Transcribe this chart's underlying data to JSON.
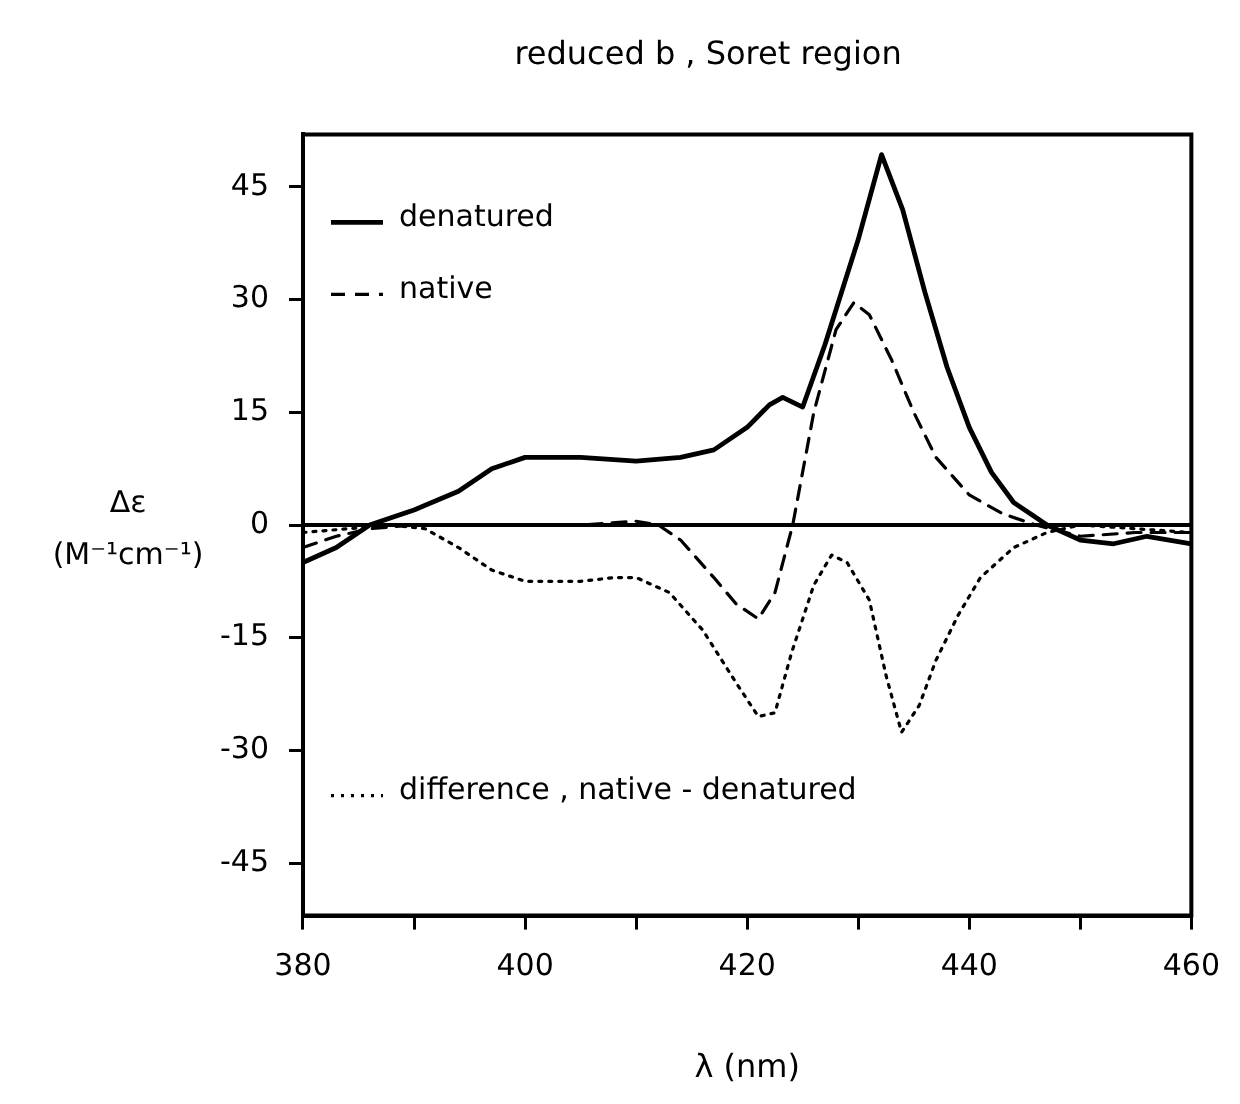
{
  "chart_data": {
    "type": "line",
    "title": "reduced b , Soret region",
    "xlabel": "λ (nm)",
    "ylabel": "Δε (M⁻¹cm⁻¹)",
    "xlim": [
      380,
      460
    ],
    "xticks": [
      380,
      {
        "value": 390,
        "label": null
      },
      400,
      {
        "value": 410,
        "label": null
      },
      420,
      {
        "value": 430,
        "label": null
      },
      440,
      {
        "value": 450,
        "label": null
      },
      460
    ],
    "ylim": [
      -52,
      52
    ],
    "yticks": [
      -45,
      -30,
      -15,
      0,
      15,
      30,
      45
    ],
    "grid": false,
    "legend": "top left",
    "marker": "none",
    "ref_lines": [
      {
        "axis": "y",
        "value": 0,
        "color": "#000000",
        "line_style": "solid"
      }
    ],
    "series": [
      {
        "name": "denatured",
        "color": "#000000",
        "line_style": "solid",
        "x": [
          380,
          383,
          386,
          390,
          394,
          397,
          400,
          405,
          410,
          414,
          417,
          420,
          422,
          423.2,
          425,
          427,
          430,
          432.1,
          434,
          436,
          438,
          440,
          442,
          444,
          447,
          450,
          453,
          456,
          460
        ],
        "values": [
          -5,
          -3,
          0,
          2,
          4.5,
          7.5,
          9,
          9,
          8.5,
          9,
          10,
          13,
          16,
          17,
          15.7,
          24,
          38,
          49.3,
          42,
          31,
          21,
          13,
          7,
          3,
          0,
          -2,
          -2.5,
          -1.5,
          -2.5
        ]
      },
      {
        "name": "native",
        "color": "#000000",
        "line_style": "dashed",
        "x": [
          380,
          383,
          386,
          390,
          395,
          400,
          405,
          410,
          412,
          414,
          417,
          419,
          421,
          422.5,
          424.1,
          426,
          428,
          429.6,
          431,
          433,
          435,
          437,
          440,
          443,
          446,
          450,
          455,
          460
        ],
        "values": [
          -3,
          -1.5,
          -0.5,
          0,
          0,
          0,
          0,
          0.5,
          0,
          -2,
          -7,
          -10.5,
          -12.5,
          -9,
          0,
          15,
          26,
          29.6,
          28,
          22,
          15,
          9,
          4,
          1.5,
          0,
          -1.5,
          -1,
          -1
        ]
      },
      {
        "name": "difference , native - denatured",
        "color": "#000000",
        "line_style": "dotted",
        "x": [
          380,
          384,
          388,
          391,
          394,
          397,
          400,
          405,
          408,
          410,
          413,
          416,
          419,
          421,
          422.5,
          424,
          426,
          427.6,
          429,
          431,
          432.5,
          433.9,
          435.5,
          437,
          439,
          441,
          444,
          447,
          450,
          455,
          460
        ],
        "values": [
          -1,
          -0.5,
          0,
          -0.5,
          -3,
          -6,
          -7.5,
          -7.5,
          -7,
          -7,
          -9,
          -14,
          -21,
          -25.5,
          -25,
          -17,
          -8,
          -4,
          -5,
          -10,
          -20,
          -27.6,
          -24,
          -18,
          -12,
          -7,
          -3,
          -1,
          0,
          -0.5,
          -1
        ]
      }
    ]
  }
}
